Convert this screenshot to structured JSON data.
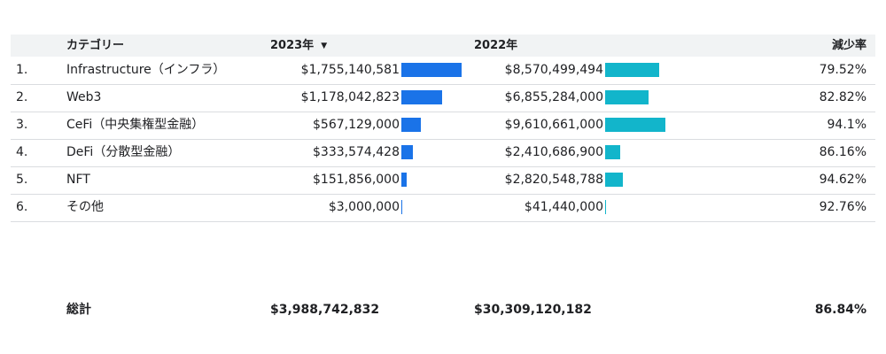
{
  "headers": {
    "category": "カテゴリー",
    "year2023": "2023年",
    "year2022": "2022年",
    "decrease_rate": "減少率"
  },
  "sort_icon": "▼",
  "chart_data": {
    "type": "table",
    "columns": [
      "カテゴリー",
      "2023年",
      "2022年",
      "減少率"
    ],
    "sorted_by": "2023年",
    "sort_order": "descending",
    "rows": [
      {
        "rank": "1.",
        "category": "Infrastructure（インフラ）",
        "y2023_label": "$1,755,140,581",
        "y2023": 1755140581,
        "y2022_label": "$8,570,499,494",
        "y2022": 8570499494,
        "rate": "79.52%"
      },
      {
        "rank": "2.",
        "category": "Web3",
        "y2023_label": "$1,178,042,823",
        "y2023": 1178042823,
        "y2022_label": "$6,855,284,000",
        "y2022": 6855284000,
        "rate": "82.82%"
      },
      {
        "rank": "3.",
        "category": "CeFi（中央集権型金融）",
        "y2023_label": "$567,129,000",
        "y2023": 567129000,
        "y2022_label": "$9,610,661,000",
        "y2022": 9610661000,
        "rate": "94.1%"
      },
      {
        "rank": "4.",
        "category": "DeFi（分散型金融）",
        "y2023_label": "$333,574,428",
        "y2023": 333574428,
        "y2022_label": "$2,410,686,900",
        "y2022": 2410686900,
        "rate": "86.16%"
      },
      {
        "rank": "5.",
        "category": "NFT",
        "y2023_label": "$151,856,000",
        "y2023": 151856000,
        "y2022_label": "$2,820,548,788",
        "y2022": 2820548788,
        "rate": "94.62%"
      },
      {
        "rank": "6.",
        "category": "その他",
        "y2023_label": "$3,000,000",
        "y2023": 3000000,
        "y2022_label": "$41,440,000",
        "y2022": 41440000,
        "rate": "92.76%"
      }
    ],
    "bar_colors": {
      "y2023": "#1a73e8",
      "y2022": "#12b5cb"
    }
  },
  "totals": {
    "label": "総計",
    "y2023": "$3,988,742,832",
    "y2022": "$30,309,120,182",
    "rate": "86.84%"
  }
}
